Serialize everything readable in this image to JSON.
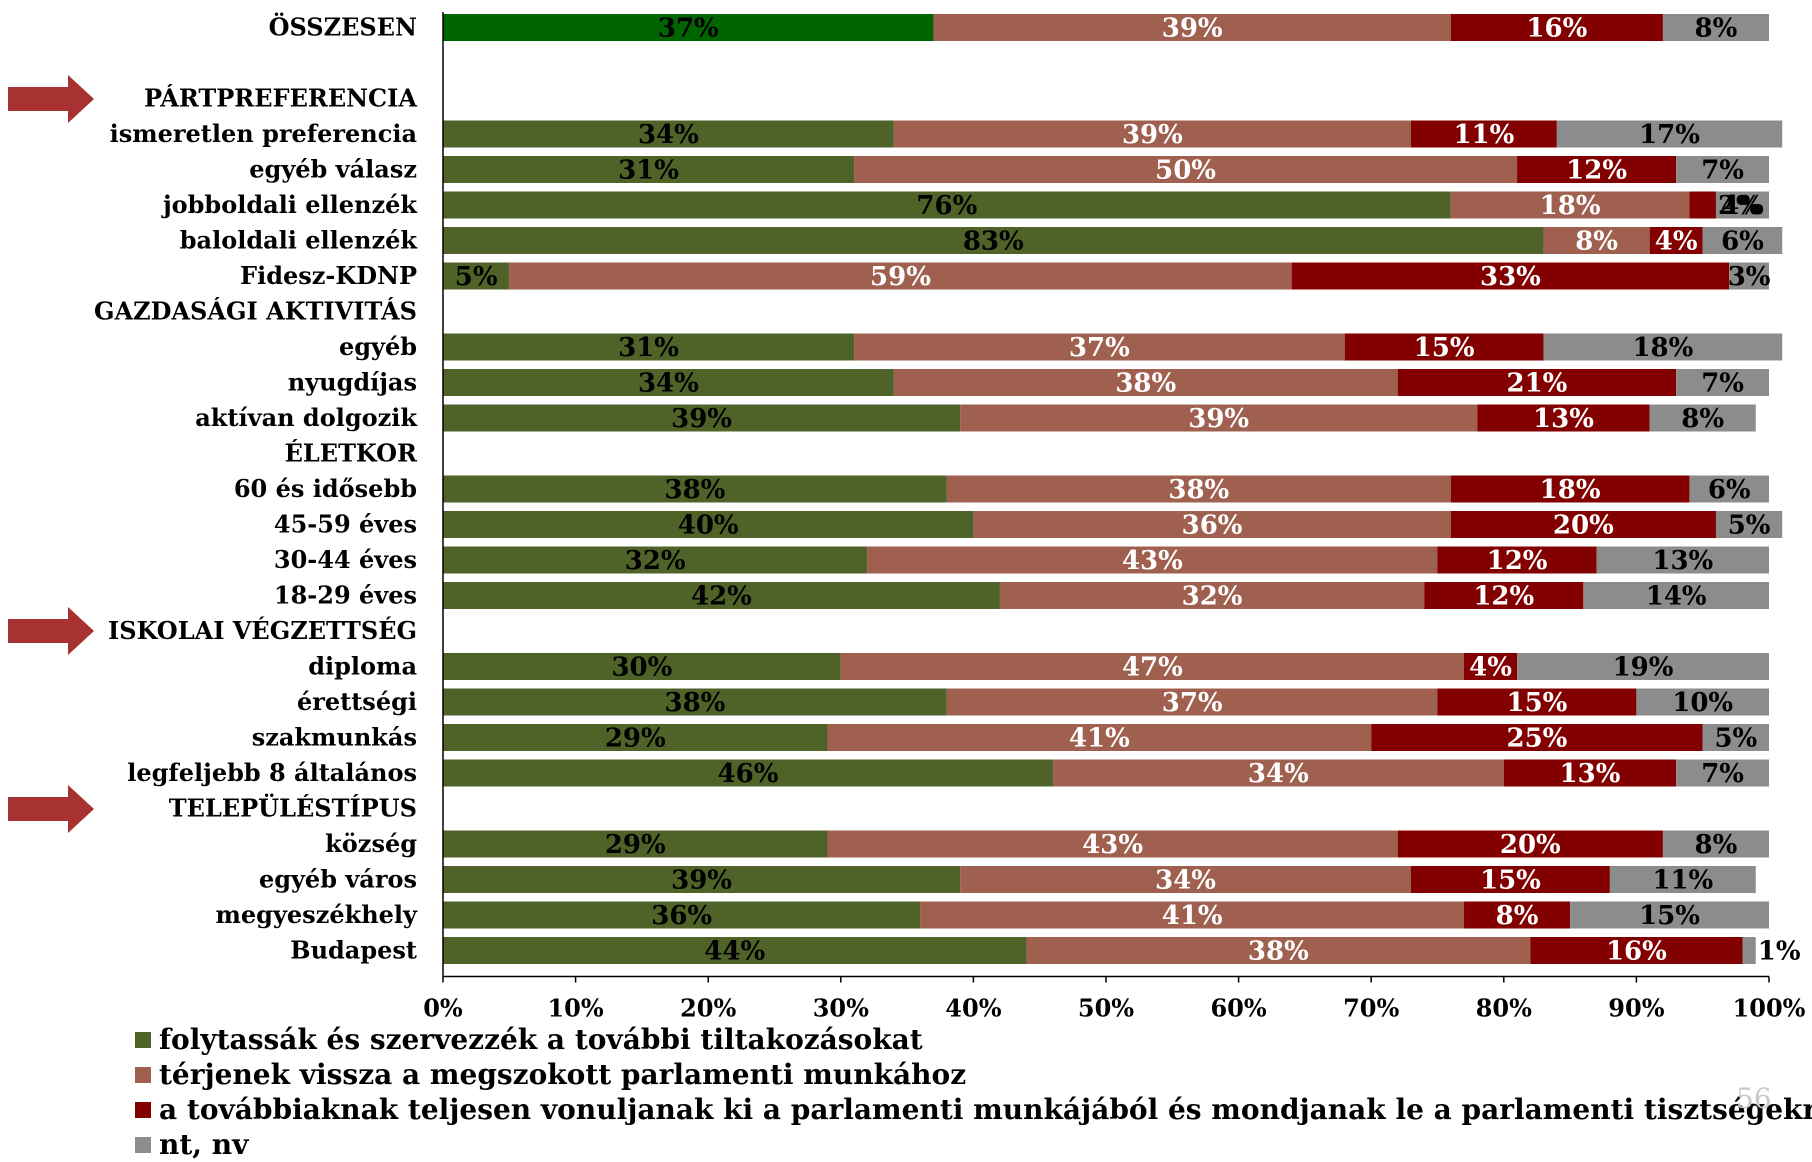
{
  "page_number": "56",
  "colors": {
    "series": [
      "#4f6228",
      "#a0604f",
      "#820000",
      "#8c8c8c"
    ],
    "total_series0": "#006400"
  },
  "icons": {
    "arrow": "right-arrow-icon"
  },
  "chart_data": {
    "type": "bar",
    "orientation": "horizontal",
    "stacked": true,
    "percent_stacked": true,
    "xlim": [
      0,
      100
    ],
    "x_ticks": [
      "0%",
      "10%",
      "20%",
      "30%",
      "40%",
      "50%",
      "60%",
      "70%",
      "80%",
      "90%",
      "100%"
    ],
    "legend_position": "bottom-left",
    "grid": false,
    "legend": [
      "folytassák és szervezzék a további tiltakozásokat",
      "térjenek vissza a megszokott parlamenti munkához",
      "a továbbiaknak teljesen vonuljanak ki a parlamenti munkájából és mondjanak le a parlamenti tisztségekről",
      "nt, nv"
    ],
    "rows": [
      {
        "label": "ÖSSZESEN",
        "values": [
          37,
          39,
          16,
          8
        ],
        "labels": [
          "37%",
          "39%",
          "16%",
          "8%"
        ]
      },
      {
        "label": "",
        "header": true
      },
      {
        "label": "PÁRTPREFERENCIA",
        "header": true,
        "arrow": true
      },
      {
        "label": "ismeretlen preferencia",
        "values": [
          34,
          39,
          11,
          17
        ],
        "labels": [
          "34%",
          "39%",
          "11%",
          "17%"
        ]
      },
      {
        "label": "egyéb válasz",
        "values": [
          31,
          50,
          12,
          7
        ],
        "labels": [
          "31%",
          "50%",
          "12%",
          "7%"
        ]
      },
      {
        "label": "jobboldali ellenzék",
        "values": [
          76,
          18,
          2,
          4
        ],
        "labels": [
          "76%",
          "18%",
          "2%",
          "4%"
        ]
      },
      {
        "label": "baloldali ellenzék",
        "values": [
          83,
          8,
          4,
          6
        ],
        "labels": [
          "83%",
          "8%",
          "4%",
          "6%"
        ]
      },
      {
        "label": "Fidesz-KDNP",
        "values": [
          5,
          59,
          33,
          3
        ],
        "labels": [
          "5%",
          "59%",
          "33%",
          "3%"
        ]
      },
      {
        "label": "GAZDASÁGI AKTIVITÁS",
        "header": true
      },
      {
        "label": "egyéb",
        "values": [
          31,
          37,
          15,
          18
        ],
        "labels": [
          "31%",
          "37%",
          "15%",
          "18%"
        ]
      },
      {
        "label": "nyugdíjas",
        "values": [
          34,
          38,
          21,
          7
        ],
        "labels": [
          "34%",
          "38%",
          "21%",
          "7%"
        ]
      },
      {
        "label": "aktívan dolgozik",
        "values": [
          39,
          39,
          13,
          8
        ],
        "labels": [
          "39%",
          "39%",
          "13%",
          "8%"
        ]
      },
      {
        "label": "ÉLETKOR",
        "header": true
      },
      {
        "label": "60 és idősebb",
        "values": [
          38,
          38,
          18,
          6
        ],
        "labels": [
          "38%",
          "38%",
          "18%",
          "6%"
        ]
      },
      {
        "label": "45-59 éves",
        "values": [
          40,
          36,
          20,
          5
        ],
        "labels": [
          "40%",
          "36%",
          "20%",
          "5%"
        ]
      },
      {
        "label": "30-44 éves",
        "values": [
          32,
          43,
          12,
          13
        ],
        "labels": [
          "32%",
          "43%",
          "12%",
          "13%"
        ]
      },
      {
        "label": "18-29 éves",
        "values": [
          42,
          32,
          12,
          14
        ],
        "labels": [
          "42%",
          "32%",
          "12%",
          "14%"
        ]
      },
      {
        "label": "ISKOLAI VÉGZETTSÉG",
        "header": true,
        "arrow": true
      },
      {
        "label": "diploma",
        "values": [
          30,
          47,
          4,
          19
        ],
        "labels": [
          "30%",
          "47%",
          "4%",
          "19%"
        ]
      },
      {
        "label": "érettségi",
        "values": [
          38,
          37,
          15,
          10
        ],
        "labels": [
          "38%",
          "37%",
          "15%",
          "10%"
        ]
      },
      {
        "label": "szakmunkás",
        "values": [
          29,
          41,
          25,
          5
        ],
        "labels": [
          "29%",
          "41%",
          "25%",
          "5%"
        ]
      },
      {
        "label": "legfeljebb 8 általános",
        "values": [
          46,
          34,
          13,
          7
        ],
        "labels": [
          "46%",
          "34%",
          "13%",
          "7%"
        ]
      },
      {
        "label": "TELEPÜLÉSTÍPUS",
        "header": true,
        "arrow": true
      },
      {
        "label": "község",
        "values": [
          29,
          43,
          20,
          8
        ],
        "labels": [
          "29%",
          "43%",
          "20%",
          "8%"
        ]
      },
      {
        "label": "egyéb város",
        "values": [
          39,
          34,
          15,
          11
        ],
        "labels": [
          "39%",
          "34%",
          "15%",
          "11%"
        ]
      },
      {
        "label": "megyeszékhely",
        "values": [
          36,
          41,
          8,
          15
        ],
        "labels": [
          "36%",
          "41%",
          "8%",
          "15%"
        ]
      },
      {
        "label": "Budapest",
        "values": [
          44,
          38,
          16,
          1
        ],
        "labels": [
          "44%",
          "38%",
          "16%",
          "1%"
        ]
      }
    ]
  }
}
